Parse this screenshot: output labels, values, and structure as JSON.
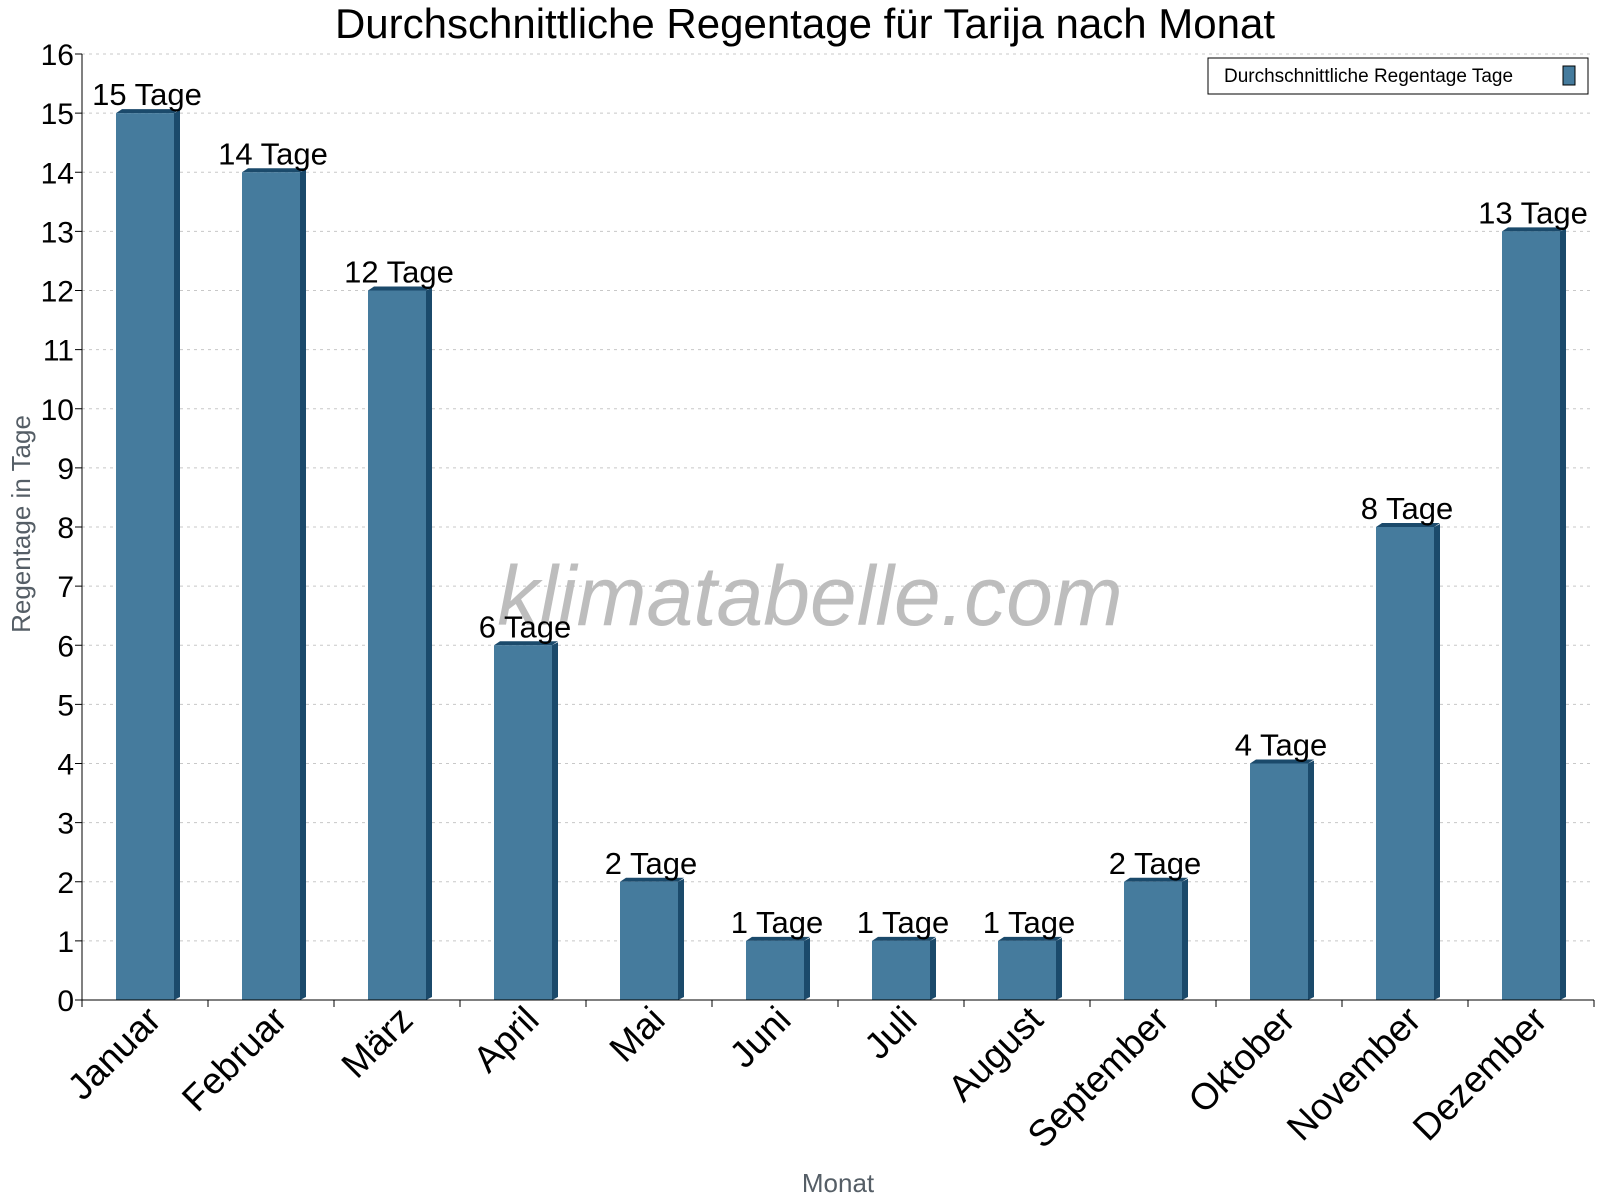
{
  "chart_data": {
    "type": "bar",
    "title": "Durchschnittliche Regentage für Tarija nach Monat",
    "xlabel": "Monat",
    "ylabel": "Regentage in Tage",
    "categories": [
      "Januar",
      "Februar",
      "März",
      "April",
      "Mai",
      "Juni",
      "Juli",
      "August",
      "September",
      "Oktober",
      "November",
      "Dezember"
    ],
    "series": [
      {
        "name": "Durchschnittliche Regentage Tage",
        "values": [
          15,
          14,
          12,
          6,
          2,
          1,
          1,
          1,
          2,
          4,
          8,
          13
        ],
        "data_labels": [
          "15 Tage",
          "14 Tage",
          "12 Tage",
          "6 Tage",
          "2 Tage",
          "1 Tage",
          "1 Tage",
          "1 Tage",
          "2 Tage",
          "4 Tage",
          "8 Tage",
          "13 Tage"
        ],
        "color": "#457b9d",
        "side_color": "#1b4a6b"
      }
    ],
    "ylim": [
      0,
      16
    ],
    "yticks": [
      "0",
      "1",
      "2",
      "3",
      "4",
      "5",
      "6",
      "7",
      "8",
      "9",
      "10",
      "11",
      "12",
      "13",
      "14",
      "15",
      "16"
    ],
    "grid": true,
    "legend_position": "top-right",
    "watermark": "klimatabelle.com"
  }
}
